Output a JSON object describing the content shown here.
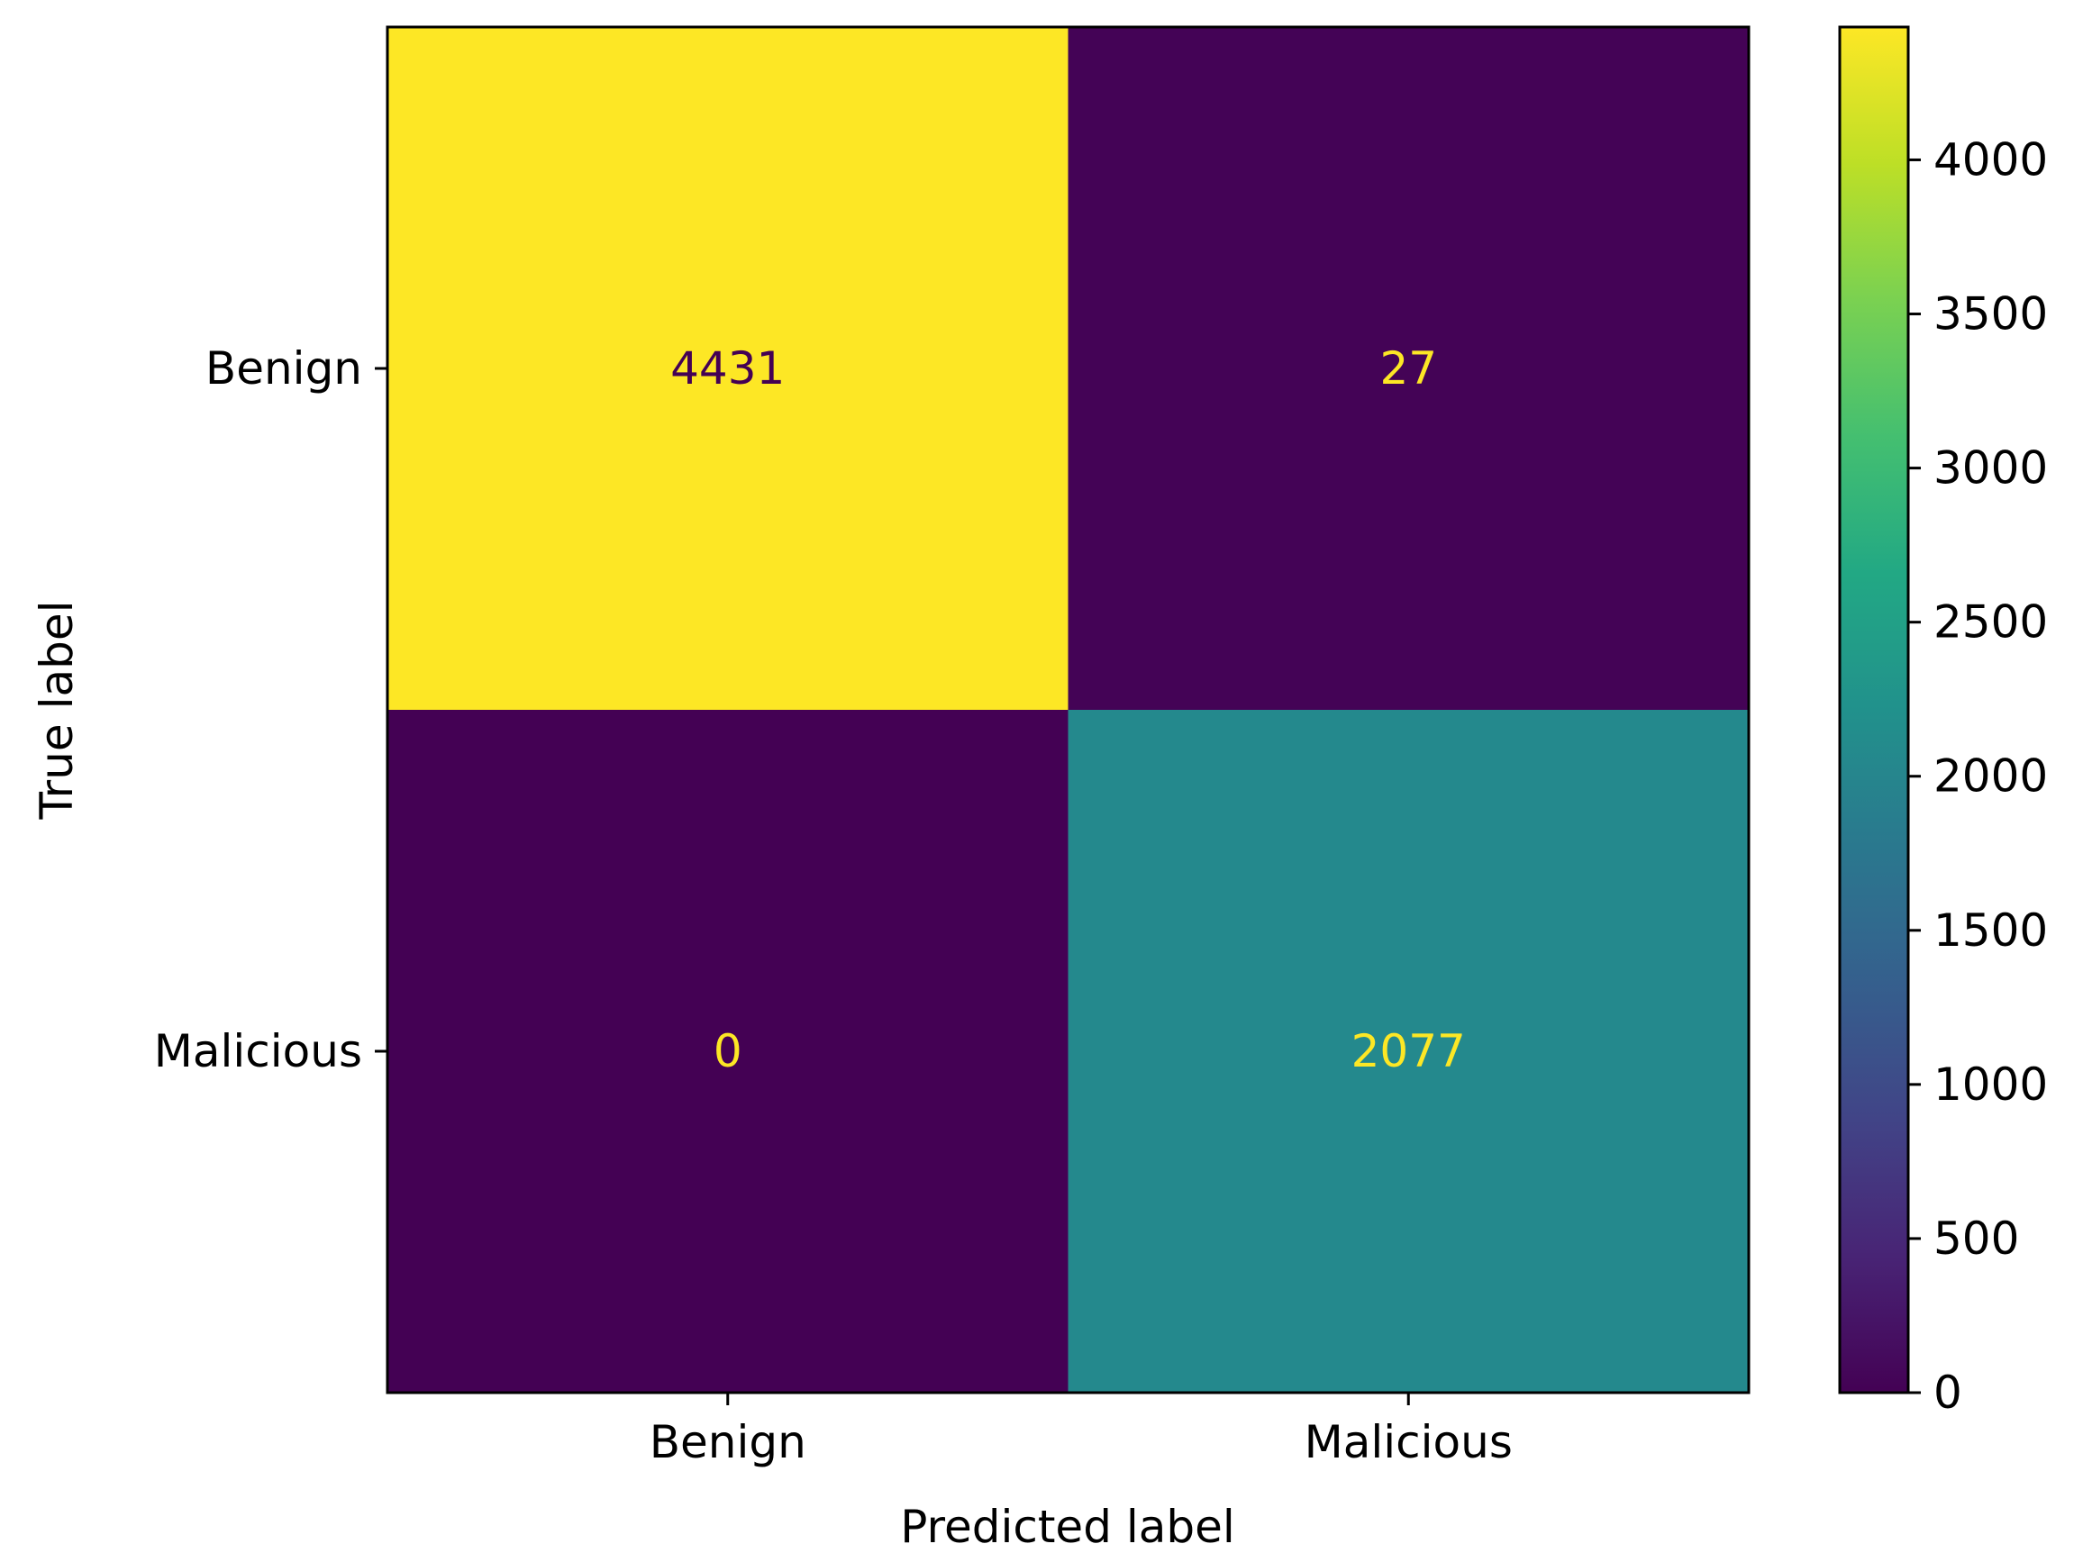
{
  "chart_data": {
    "type": "heatmap",
    "title": "",
    "xlabel": "Predicted label",
    "ylabel": "True label",
    "x_categories": [
      "Benign",
      "Malicious"
    ],
    "y_categories": [
      "Benign",
      "Malicious"
    ],
    "matrix": [
      [
        4431,
        27
      ],
      [
        0,
        2077
      ]
    ],
    "colormap": "viridis",
    "colorbar": {
      "range": [
        0,
        4431
      ],
      "ticks": [
        0,
        500,
        1000,
        1500,
        2000,
        2500,
        3000,
        3500,
        4000
      ],
      "tick_labels": [
        "0",
        "500",
        "1000",
        "1500",
        "2000",
        "2500",
        "3000",
        "3500",
        "4000"
      ]
    },
    "grid": false
  }
}
